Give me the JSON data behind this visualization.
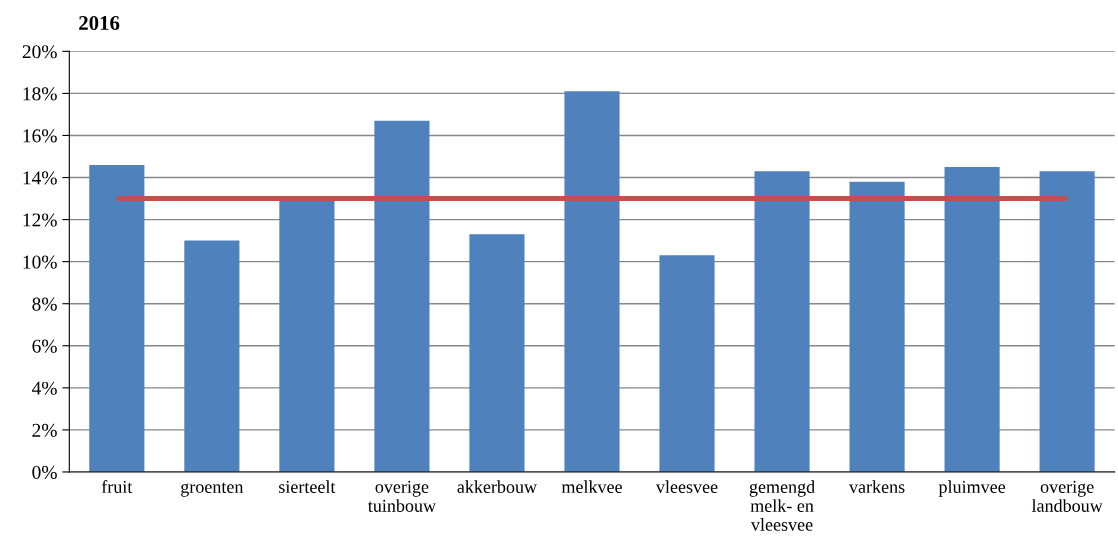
{
  "chart_data": {
    "type": "bar",
    "title": "2016",
    "categories": [
      "fruit",
      "groenten",
      "sierteelt",
      "overige\ntuinbouw",
      "akkerbouw",
      "melkvee",
      "vleesvee",
      "gemengd\nmelk- en\nvleesvee",
      "varkens",
      "pluimvee",
      "overige\nlandbouw"
    ],
    "series": [
      {
        "color": "#4f81bd",
        "values": [
          14.6,
          11.0,
          13.0,
          16.7,
          11.3,
          18.1,
          10.3,
          14.3,
          13.8,
          14.5,
          14.3
        ]
      },
      {
        "type": "line",
        "color": "#c0504d",
        "values": [
          13.0,
          13.0,
          13.0,
          13.0,
          13.0,
          13.0,
          13.0,
          13.0,
          13.0,
          13.0,
          13.0
        ]
      }
    ],
    "ylim": [
      0,
      20
    ],
    "yticks": [
      {
        "value": 0,
        "label": "0%"
      },
      {
        "value": 2,
        "label": "2%"
      },
      {
        "value": 4,
        "label": "4%"
      },
      {
        "value": 6,
        "label": "6%"
      },
      {
        "value": 8,
        "label": "8%"
      },
      {
        "value": 10,
        "label": "10%"
      },
      {
        "value": 12,
        "label": "12%"
      },
      {
        "value": 14,
        "label": "14%"
      },
      {
        "value": 16,
        "label": "16%"
      },
      {
        "value": 18,
        "label": "18%"
      },
      {
        "value": 20,
        "label": "20%"
      }
    ],
    "grid": "y",
    "marker": "none",
    "legend": false
  }
}
